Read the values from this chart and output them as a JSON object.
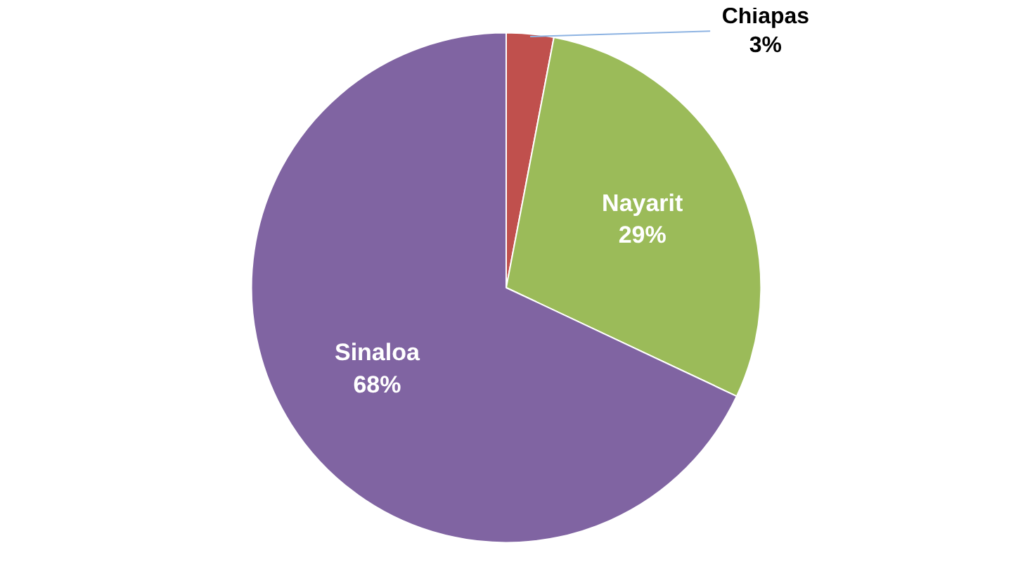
{
  "chart_data": {
    "type": "pie",
    "categories": [
      "Chiapas",
      "Nayarit",
      "Sinaloa"
    ],
    "values": [
      3,
      29,
      68
    ],
    "colors": [
      "#c0504d",
      "#9bbb59",
      "#8064a2"
    ],
    "value_labels": [
      "3%",
      "29%",
      "68%"
    ]
  }
}
